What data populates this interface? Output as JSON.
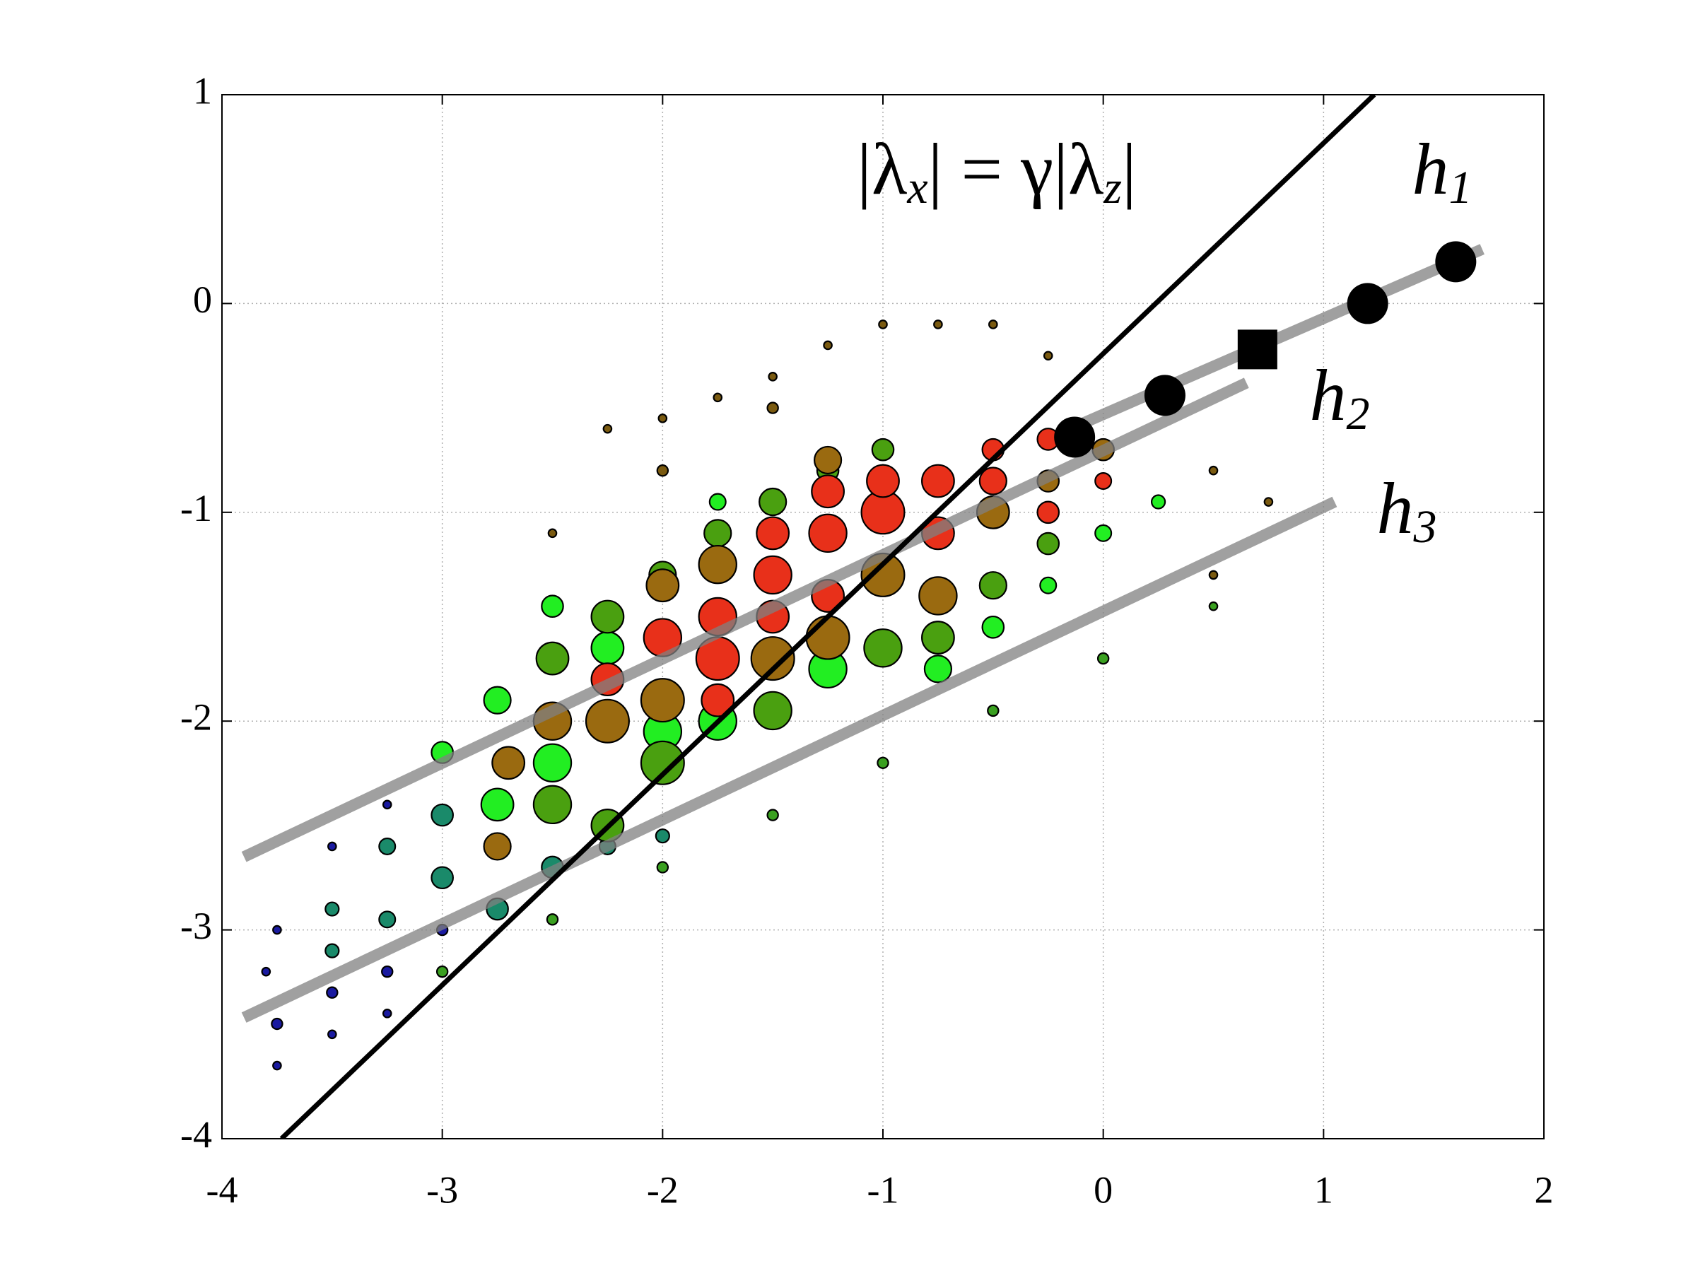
{
  "chart_data": {
    "type": "scatter",
    "xlim": [
      -4,
      2
    ],
    "ylim": [
      -4,
      1
    ],
    "xticks": [
      -4,
      -3,
      -2,
      -1,
      0,
      1,
      2
    ],
    "yticks": [
      -4,
      -3,
      -2,
      -1,
      0,
      1
    ],
    "grid": true,
    "series": [
      {
        "color": "#1a1aa0",
        "x": [
          -3.75,
          -3.5,
          -3.25,
          -3.0,
          -3.75,
          -3.5,
          -3.25,
          -3.8,
          -3.5,
          -3.25,
          -3.75,
          -3.0
        ],
        "y": [
          -3.45,
          -3.3,
          -3.2,
          -3.0,
          -3.65,
          -3.5,
          -3.4,
          -3.2,
          -2.6,
          -2.4,
          -3.0,
          -3.2
        ],
        "sizes": [
          4,
          4,
          4,
          4,
          3,
          3,
          3,
          3,
          3,
          3,
          3,
          3
        ]
      },
      {
        "color": "#1a8a6a",
        "x": [
          -3.25,
          -3.0,
          -3.0,
          -2.75,
          -3.25,
          -3.5,
          -2.5,
          -2.25,
          -3.5,
          -2.0
        ],
        "y": [
          -2.6,
          -2.45,
          -2.75,
          -2.9,
          -2.95,
          -2.9,
          -2.7,
          -2.6,
          -3.1,
          -2.55
        ],
        "sizes": [
          6,
          8,
          8,
          8,
          6,
          5,
          8,
          6,
          5,
          5
        ]
      },
      {
        "color": "#7a5a10",
        "x": [
          -2.25,
          -2.0,
          -1.75,
          -1.5,
          -1.25,
          -1.0,
          -0.75,
          -0.5,
          -0.25,
          -2.5,
          -2.0,
          -1.5,
          0.5,
          0.75,
          0.5
        ],
        "y": [
          -0.6,
          -0.55,
          -0.45,
          -0.35,
          -0.2,
          -0.1,
          -0.1,
          -0.1,
          -0.25,
          -1.1,
          -0.8,
          -0.5,
          -0.8,
          -0.95,
          -1.3
        ],
        "sizes": [
          3,
          3,
          3,
          3,
          3,
          3,
          3,
          3,
          3,
          3,
          4,
          4,
          3,
          3,
          3
        ]
      },
      {
        "color": "#3aa020",
        "x": [
          -2.0,
          -1.5,
          -1.0,
          -0.5,
          0.0,
          0.5,
          -2.5,
          -3.0
        ],
        "y": [
          -2.7,
          -2.45,
          -2.2,
          -1.95,
          -1.7,
          -1.45,
          -2.95,
          -3.2
        ],
        "sizes": [
          4,
          4,
          4,
          4,
          4,
          3,
          4,
          4
        ]
      },
      {
        "color": "#22ee22",
        "x": [
          -2.75,
          -2.5,
          -2.25,
          -2.0,
          -1.75,
          -1.25,
          -0.75,
          -2.75,
          -3.0,
          -2.5,
          -1.75,
          -0.5,
          -0.25,
          0.0,
          0.25
        ],
        "y": [
          -1.9,
          -2.2,
          -1.65,
          -2.05,
          -2.0,
          -1.75,
          -1.75,
          -2.4,
          -2.15,
          -1.45,
          -0.95,
          -1.55,
          -1.35,
          -1.1,
          -0.95
        ],
        "sizes": [
          10,
          14,
          12,
          14,
          14,
          14,
          10,
          12,
          8,
          8,
          6,
          8,
          6,
          6,
          5
        ]
      },
      {
        "color": "#4aa010",
        "x": [
          -2.5,
          -2.25,
          -2.0,
          -1.75,
          -1.5,
          -1.25,
          -1.0,
          -2.0,
          -1.5,
          -1.0,
          -0.75,
          -0.5,
          -2.5,
          -2.25,
          -0.25
        ],
        "y": [
          -1.7,
          -1.5,
          -1.3,
          -1.1,
          -0.95,
          -0.8,
          -0.7,
          -2.2,
          -1.95,
          -1.65,
          -1.6,
          -1.35,
          -2.4,
          -2.5,
          -1.15
        ],
        "sizes": [
          12,
          12,
          10,
          10,
          10,
          8,
          8,
          16,
          14,
          14,
          12,
          10,
          14,
          12,
          8
        ]
      },
      {
        "color": "#9a6a10",
        "x": [
          -2.5,
          -2.25,
          -2.0,
          -1.75,
          -1.5,
          -1.25,
          -1.0,
          -0.75,
          -0.5,
          -2.7,
          -2.0,
          -1.25,
          -0.25,
          0.0,
          -2.75
        ],
        "y": [
          -2.0,
          -2.0,
          -1.9,
          -1.25,
          -1.7,
          -1.6,
          -1.3,
          -1.4,
          -1.0,
          -2.2,
          -1.35,
          -0.75,
          -0.85,
          -0.7,
          -2.6
        ],
        "sizes": [
          14,
          16,
          16,
          14,
          16,
          16,
          16,
          14,
          12,
          12,
          12,
          10,
          8,
          8,
          10
        ]
      },
      {
        "color": "#e8301a",
        "x": [
          -2.0,
          -1.75,
          -1.75,
          -1.5,
          -1.5,
          -1.25,
          -1.25,
          -1.0,
          -1.0,
          -0.75,
          -0.75,
          -0.5,
          -0.25,
          -0.25,
          -2.25,
          -1.5,
          -1.25,
          -1.75,
          0.0,
          -0.5
        ],
        "y": [
          -1.6,
          -1.7,
          -1.5,
          -1.3,
          -1.5,
          -1.1,
          -1.4,
          -1.0,
          -0.85,
          -1.1,
          -0.85,
          -0.85,
          -0.65,
          -1.0,
          -1.8,
          -1.1,
          -0.9,
          -1.9,
          -0.85,
          -0.7
        ],
        "sizes": [
          14,
          16,
          14,
          14,
          12,
          14,
          12,
          16,
          12,
          12,
          12,
          10,
          8,
          8,
          12,
          12,
          12,
          12,
          6,
          8
        ]
      }
    ],
    "lines": [
      {
        "color": "#808080",
        "x": [
          -0.15,
          1.72
        ],
        "y": [
          -0.6,
          0.26
        ]
      },
      {
        "color": "#808080",
        "x": [
          -3.9,
          0.65
        ],
        "y": [
          -2.65,
          -0.38
        ]
      },
      {
        "color": "#808080",
        "x": [
          -3.9,
          1.05
        ],
        "y": [
          -3.42,
          -0.95
        ]
      },
      {
        "color": "#000000",
        "x": [
          -3.73,
          1.23
        ],
        "y": [
          -4,
          1
        ]
      }
    ],
    "markers": {
      "color": "#000000",
      "x": [
        -0.13,
        0.28,
        0.7,
        1.2,
        1.6
      ],
      "y": [
        -0.64,
        -0.44,
        -0.22,
        0.0,
        0.2
      ],
      "shape": [
        "circle",
        "circle",
        "square",
        "circle",
        "circle"
      ]
    },
    "annotations": [
      {
        "parts": [
          {
            "t": "|λ"
          },
          {
            "t": "x",
            "sub": true
          },
          {
            "t": "| = γ|λ"
          },
          {
            "t": "z",
            "sub": true
          },
          {
            "t": "|"
          }
        ]
      },
      {
        "parts": [
          {
            "t": "h"
          },
          {
            "t": "1",
            "sub": true
          }
        ]
      },
      {
        "parts": [
          {
            "t": "h"
          },
          {
            "t": "2",
            "sub": true
          }
        ]
      },
      {
        "parts": [
          {
            "t": "h"
          },
          {
            "t": "3",
            "sub": true
          }
        ]
      }
    ]
  }
}
